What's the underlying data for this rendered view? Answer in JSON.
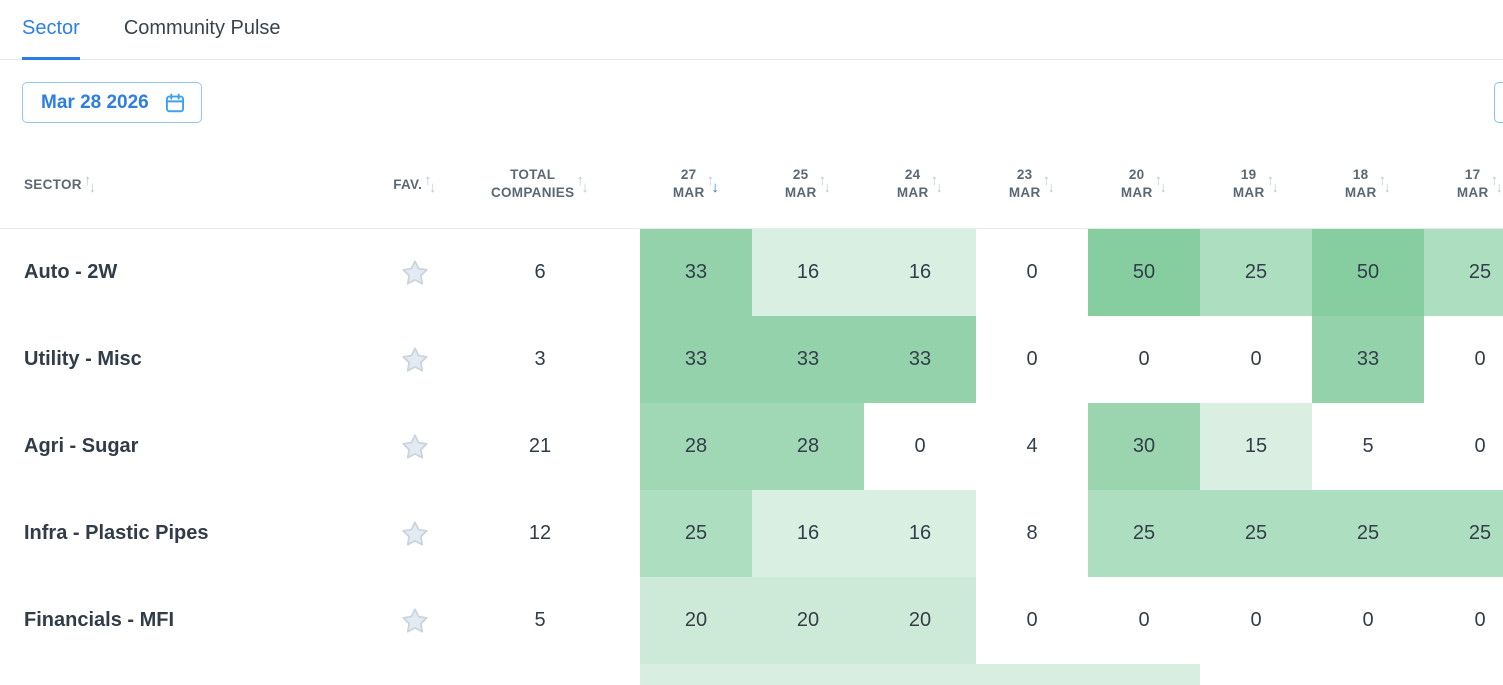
{
  "tabs": [
    {
      "label": "Sector",
      "active": true
    },
    {
      "label": "Community Pulse",
      "active": false
    }
  ],
  "toolbar": {
    "date_label": "Mar 28 2026"
  },
  "table": {
    "sector_header": "SECTOR",
    "fav_header": "FAV.",
    "total_header_line1": "TOTAL",
    "total_header_line2": "COMPANIES",
    "date_columns": [
      {
        "day": "27",
        "month": "MAR",
        "sort": "desc"
      },
      {
        "day": "25",
        "month": "MAR",
        "sort": "none"
      },
      {
        "day": "24",
        "month": "MAR",
        "sort": "none"
      },
      {
        "day": "23",
        "month": "MAR",
        "sort": "none"
      },
      {
        "day": "20",
        "month": "MAR",
        "sort": "none"
      },
      {
        "day": "19",
        "month": "MAR",
        "sort": "none"
      },
      {
        "day": "18",
        "month": "MAR",
        "sort": "none"
      },
      {
        "day": "17",
        "month": "MAR",
        "sort": "none"
      }
    ],
    "rows": [
      {
        "sector": "Auto - 2W",
        "total": "6",
        "values": [
          33,
          16,
          16,
          0,
          50,
          25,
          50,
          25
        ]
      },
      {
        "sector": "Utility - Misc",
        "total": "3",
        "values": [
          33,
          33,
          33,
          0,
          0,
          0,
          33,
          0
        ]
      },
      {
        "sector": "Agri - Sugar",
        "total": "21",
        "values": [
          28,
          28,
          0,
          4,
          30,
          15,
          5,
          0
        ]
      },
      {
        "sector": "Infra - Plastic Pipes",
        "total": "12",
        "values": [
          25,
          16,
          16,
          8,
          25,
          25,
          25,
          25
        ]
      },
      {
        "sector": "Financials - MFI",
        "total": "5",
        "values": [
          20,
          20,
          20,
          0,
          0,
          0,
          0,
          0
        ]
      }
    ],
    "partial_row_tinted_columns": [
      0,
      1,
      2,
      3,
      4
    ]
  },
  "colors": {
    "accent_blue": "#2f80e0",
    "sort_active_blue": "#2e72cf",
    "sort_idle_gray": "#bcc9d6",
    "heat_by_value": {
      "0": "#ffffff",
      "4": "#ffffff",
      "5": "#ffffff",
      "8": "#ffffff",
      "15": "#daefe2",
      "16": "#d9efe2",
      "20": "#cdead8",
      "25": "#aedec0",
      "28": "#a0d7b4",
      "30": "#9bd5b0",
      "33": "#93d2ab",
      "50": "#86cda0"
    },
    "partial_row_tint": "#d8eee1"
  }
}
